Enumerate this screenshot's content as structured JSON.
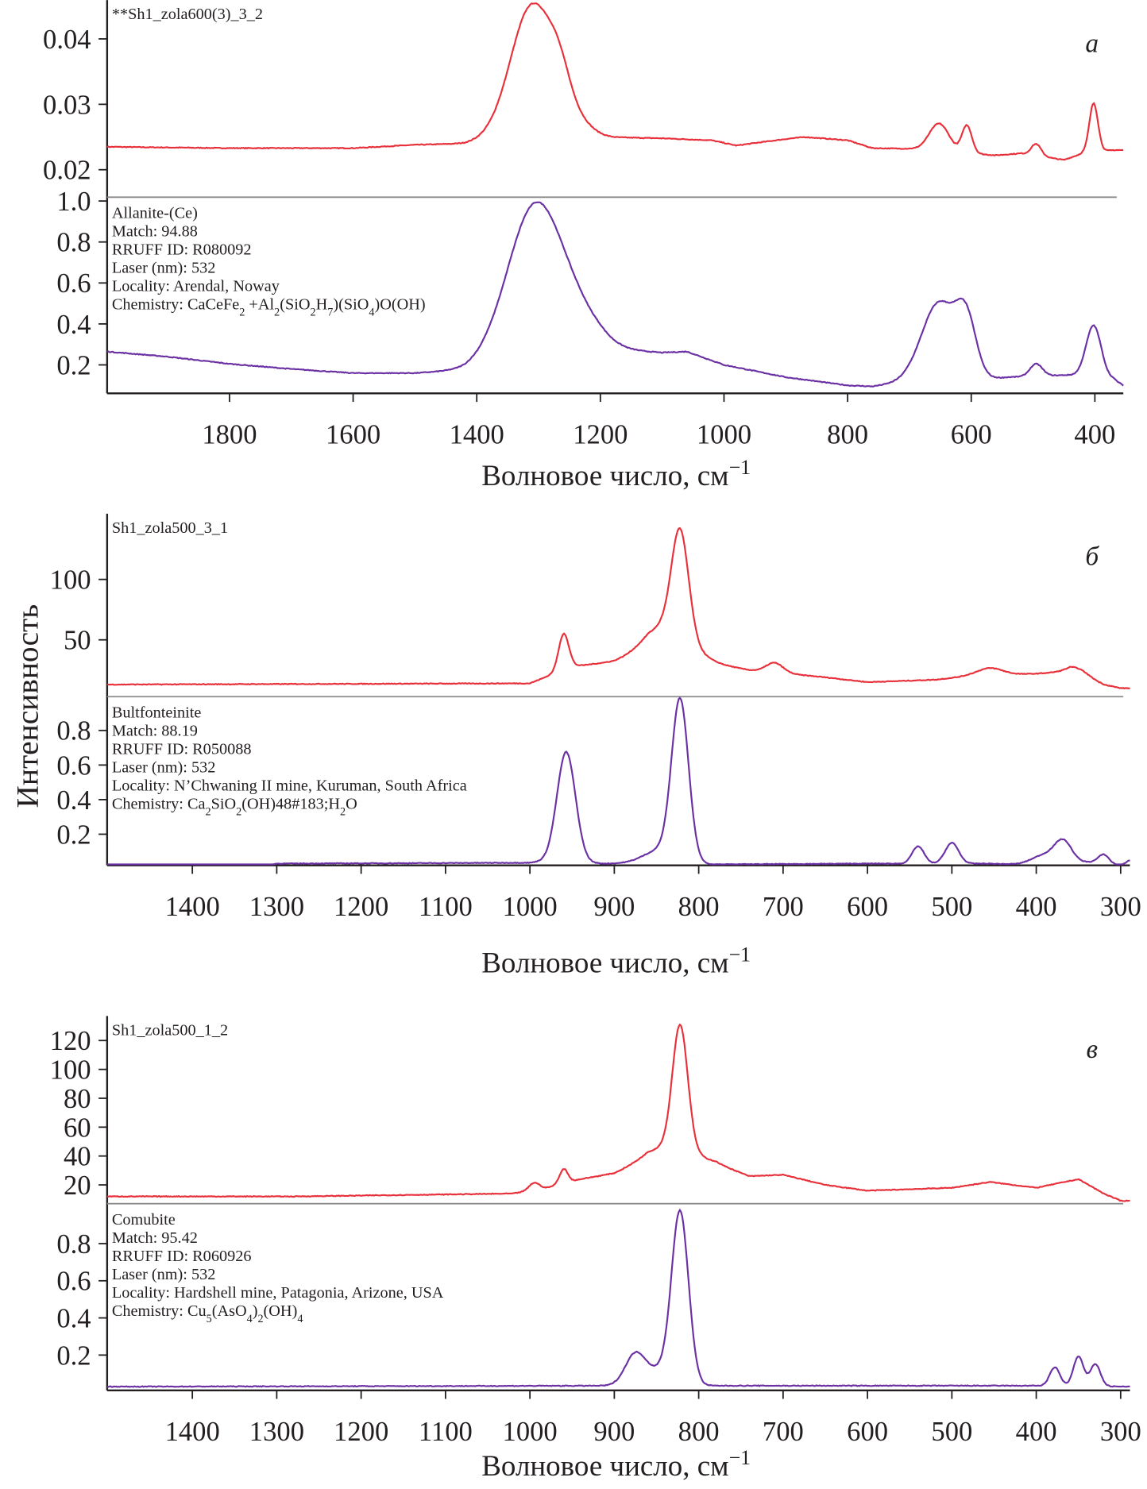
{
  "y_axis_label": "Интенсивность",
  "colors": {
    "sample": "#e8303a",
    "reference": "#6b30a3",
    "divider": "#8a8a8a",
    "axis": "#231f20"
  },
  "chart_data": [
    {
      "type": "line",
      "panel_label": "а",
      "xlabel": "Волновое число, см^{−1}",
      "xlim": [
        1998,
        354
      ],
      "xticks": [
        1800,
        1600,
        1400,
        1200,
        1000,
        800,
        600,
        400
      ],
      "sample": {
        "name": "**Sh1_zola600(3)_3_2",
        "ylim": [
          0.0158,
          0.0455
        ],
        "yticks": [
          0.02,
          0.03,
          0.04
        ],
        "ytick_labels": [
          "0.02",
          "0.03",
          "0.04"
        ],
        "baseline": [
          [
            1998,
            0.0235
          ],
          [
            1800,
            0.0233
          ],
          [
            1600,
            0.0233
          ],
          [
            1500,
            0.0238
          ],
          [
            1420,
            0.024
          ],
          [
            1380,
            0.0245
          ],
          [
            1200,
            0.025
          ],
          [
            1100,
            0.0248
          ],
          [
            1020,
            0.0245
          ],
          [
            980,
            0.0237
          ],
          [
            900,
            0.0247
          ],
          [
            870,
            0.025
          ],
          [
            800,
            0.0245
          ],
          [
            760,
            0.0233
          ],
          [
            700,
            0.0232
          ],
          [
            560,
            0.0222
          ],
          [
            520,
            0.0225
          ],
          [
            450,
            0.0215
          ],
          [
            420,
            0.0225
          ],
          [
            370,
            0.023
          ],
          [
            354,
            0.023
          ]
        ],
        "peaks": [
          [
            1310,
            0.0205,
            35
          ],
          [
            1265,
            0.005,
            18
          ],
          [
            1230,
            0.0015,
            20
          ],
          [
            652,
            0.0042,
            16
          ],
          [
            607,
            0.0042,
            8
          ],
          [
            495,
            0.0018,
            8
          ],
          [
            402,
            0.0075,
            7
          ]
        ]
      },
      "reference": {
        "info": [
          "Allanite-(Ce)",
          "Match: 94.88",
          "RRUFF ID: R080092",
          "Laser (nm): 532",
          "Locality: Arendal, Noway",
          "Chemistry: CaCeFe_{2} +Al_{2}(SiO_{2}H_{7})(SiO_{4})O(OH)"
        ],
        "ylim": [
          0.061,
          1.014
        ],
        "yticks": [
          0.2,
          0.4,
          0.6,
          0.8,
          1.0
        ],
        "ytick_labels": [
          "0.2",
          "0.4",
          "0.6",
          "0.8",
          "1.0"
        ],
        "baseline": [
          [
            1998,
            0.265
          ],
          [
            1900,
            0.24
          ],
          [
            1800,
            0.205
          ],
          [
            1700,
            0.18
          ],
          [
            1600,
            0.16
          ],
          [
            1500,
            0.16
          ],
          [
            1420,
            0.175
          ],
          [
            1380,
            0.2
          ],
          [
            1200,
            0.28
          ],
          [
            1100,
            0.26
          ],
          [
            1060,
            0.265
          ],
          [
            1000,
            0.2
          ],
          [
            900,
            0.14
          ],
          [
            800,
            0.1
          ],
          [
            760,
            0.095
          ],
          [
            700,
            0.12
          ],
          [
            580,
            0.13
          ],
          [
            540,
            0.14
          ],
          [
            450,
            0.15
          ],
          [
            420,
            0.15
          ],
          [
            370,
            0.13
          ],
          [
            354,
            0.1
          ]
        ],
        "peaks": [
          [
            1305,
            0.75,
            45
          ],
          [
            1230,
            0.1,
            35
          ],
          [
            652,
            0.38,
            28
          ],
          [
            608,
            0.26,
            16
          ],
          [
            495,
            0.06,
            10
          ],
          [
            402,
            0.25,
            12
          ]
        ]
      }
    },
    {
      "type": "line",
      "panel_label": "б",
      "xlabel": "Волновое число, см^{−1}",
      "xlim": [
        1501,
        289
      ],
      "xticks": [
        1400,
        1300,
        1200,
        1100,
        1000,
        900,
        800,
        700,
        600,
        500,
        400,
        300
      ],
      "sample": {
        "name": "Sh1_zola500_3_1",
        "ylim": [
          3,
          152
        ],
        "yticks": [
          50,
          100
        ],
        "ytick_labels": [
          "50",
          "100"
        ],
        "baseline": [
          [
            1501,
            13
          ],
          [
            1000,
            14
          ],
          [
            950,
            28
          ],
          [
            900,
            32
          ],
          [
            860,
            40
          ],
          [
            780,
            30
          ],
          [
            740,
            25
          ],
          [
            650,
            19
          ],
          [
            600,
            15
          ],
          [
            520,
            17
          ],
          [
            480,
            20
          ],
          [
            400,
            22
          ],
          [
            360,
            24
          ],
          [
            320,
            13
          ],
          [
            300,
            10
          ],
          [
            289,
            10
          ]
        ],
        "peaks": [
          [
            960,
            30,
            6
          ],
          [
            822,
            85,
            10
          ],
          [
            835,
            25,
            25
          ],
          [
            710,
            8,
            10
          ],
          [
            455,
            6,
            15
          ],
          [
            350,
            5,
            12
          ]
        ]
      },
      "reference": {
        "info": [
          "Bultfonteinite",
          "Match: 88.19",
          "RRUFF ID: R050088",
          "Laser (nm): 532",
          "Locality: N’Chwaning II mine, Kuruman, South Africa",
          "Chemistry: Ca_{2}SiO_{2}(OH)48#183;H_{2}O"
        ],
        "ylim": [
          0.02,
          0.99
        ],
        "yticks": [
          0.2,
          0.4,
          0.6,
          0.8
        ],
        "ytick_labels": [
          "0.2",
          "0.4",
          "0.6",
          "0.8"
        ],
        "baseline": [
          [
            1501,
            0.02
          ],
          [
            1310,
            0.02
          ],
          [
            1300,
            0.03
          ],
          [
            1000,
            0.035
          ],
          [
            990,
            0.04
          ],
          [
            910,
            0.03
          ],
          [
            880,
            0.03
          ],
          [
            780,
            0.025
          ],
          [
            600,
            0.03
          ],
          [
            460,
            0.03
          ],
          [
            420,
            0.025
          ],
          [
            330,
            0.04
          ],
          [
            300,
            0.02
          ],
          [
            289,
            0.05
          ]
        ],
        "peaks": [
          [
            957,
            0.64,
            11
          ],
          [
            822,
            0.92,
            10
          ],
          [
            845,
            0.08,
            20
          ],
          [
            540,
            0.1,
            7
          ],
          [
            500,
            0.12,
            8
          ],
          [
            368,
            0.12,
            10
          ],
          [
            390,
            0.05,
            15
          ],
          [
            320,
            0.05,
            6
          ]
        ]
      }
    },
    {
      "type": "line",
      "panel_label": "в",
      "xlabel": "Волновое число, см^{−1}",
      "xlim": [
        1501,
        289
      ],
      "xticks": [
        1400,
        1300,
        1200,
        1100,
        1000,
        900,
        800,
        700,
        600,
        500,
        400,
        300
      ],
      "sample": {
        "name": "Sh1_zola500_1_2",
        "ylim": [
          7,
          135
        ],
        "yticks": [
          20,
          40,
          60,
          80,
          100,
          120
        ],
        "ytick_labels": [
          "20",
          "40",
          "60",
          "80",
          "100",
          "120"
        ],
        "baseline": [
          [
            1501,
            12
          ],
          [
            1280,
            12
          ],
          [
            1020,
            14
          ],
          [
            980,
            18
          ],
          [
            940,
            24
          ],
          [
            900,
            28
          ],
          [
            860,
            38
          ],
          [
            780,
            35
          ],
          [
            740,
            26
          ],
          [
            700,
            27
          ],
          [
            650,
            20
          ],
          [
            600,
            16
          ],
          [
            500,
            18
          ],
          [
            455,
            22
          ],
          [
            400,
            18
          ],
          [
            350,
            24
          ],
          [
            320,
            14
          ],
          [
            300,
            9
          ],
          [
            289,
            9
          ]
        ],
        "peaks": [
          [
            995,
            5,
            6
          ],
          [
            960,
            10,
            5
          ],
          [
            822,
            85,
            9
          ],
          [
            830,
            10,
            25
          ]
        ]
      },
      "reference": {
        "info": [
          "Comubite",
          "Match: 95.42",
          "RRUFF ID: R060926",
          "Laser (nm): 532",
          "Locality: Hardshell mine, Patagonia, Arizone, USA",
          "Chemistry: Cu_{5}(AsO_{4})_{2}(OH)_{4}"
        ],
        "ylim": [
          0.01,
          1.01
        ],
        "yticks": [
          0.2,
          0.4,
          0.6,
          0.8
        ],
        "ytick_labels": [
          "0.2",
          "0.4",
          "0.6",
          "0.8"
        ],
        "baseline": [
          [
            1501,
            0.03
          ],
          [
            900,
            0.035
          ],
          [
            760,
            0.035
          ],
          [
            400,
            0.035
          ],
          [
            289,
            0.03
          ]
        ],
        "peaks": [
          [
            822,
            0.92,
            10
          ],
          [
            875,
            0.17,
            12
          ],
          [
            845,
            0.08,
            15
          ],
          [
            378,
            0.1,
            6
          ],
          [
            350,
            0.16,
            6
          ],
          [
            330,
            0.12,
            6
          ]
        ]
      }
    }
  ]
}
